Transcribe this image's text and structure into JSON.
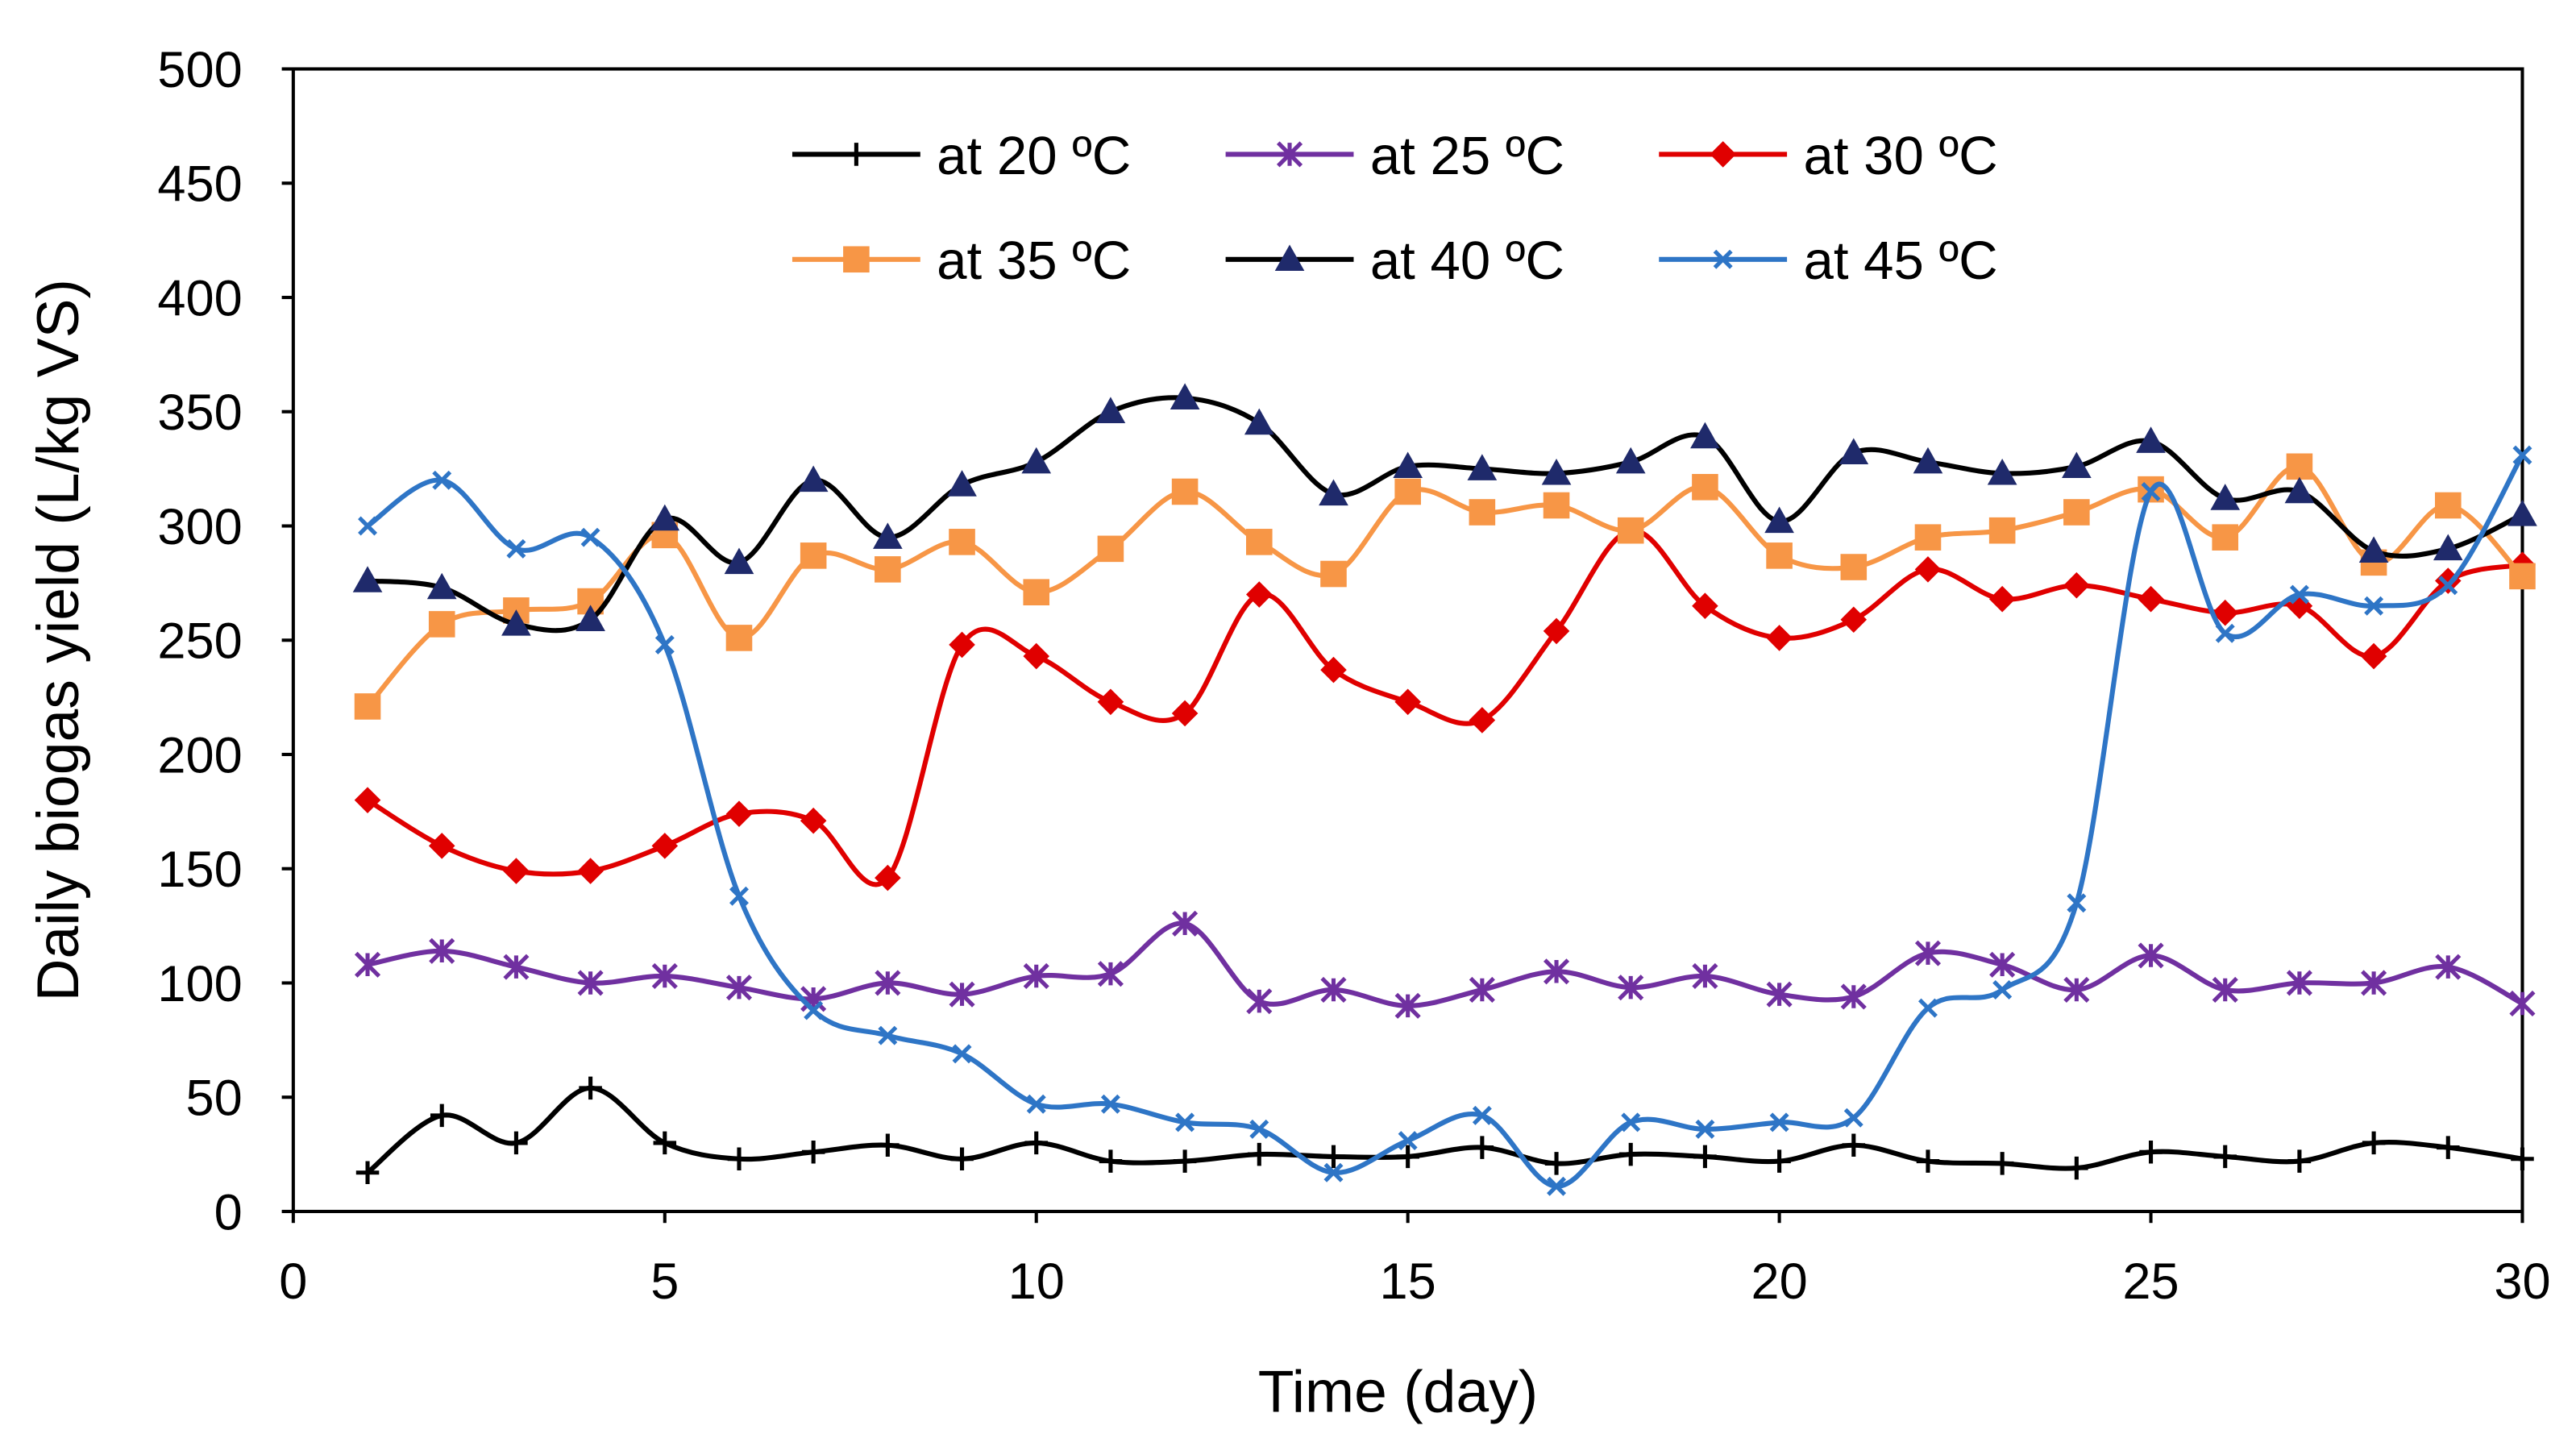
{
  "chart_data": {
    "type": "line",
    "title": "",
    "xlabel": "Time (day)",
    "ylabel": "Daily biogas yield (L/kg VS)",
    "xlim": [
      0,
      30
    ],
    "ylim": [
      0,
      500
    ],
    "xticks": [
      0,
      5,
      10,
      15,
      20,
      25,
      30
    ],
    "yticks": [
      0,
      50,
      100,
      150,
      200,
      250,
      300,
      350,
      400,
      450,
      500
    ],
    "grid": false,
    "legend_position": "top-center",
    "x": [
      1,
      2,
      3,
      4,
      5,
      6,
      7,
      8,
      9,
      10,
      11,
      12,
      13,
      14,
      15,
      16,
      17,
      18,
      19,
      20,
      21,
      22,
      23,
      24,
      25,
      26,
      27,
      28,
      29,
      30
    ],
    "series": [
      {
        "name": "at 20 ºC",
        "color": "#000000",
        "marker": "plus",
        "values": [
          17,
          42,
          30,
          54,
          30,
          23,
          26,
          29,
          23,
          30,
          22,
          22,
          25,
          24,
          24,
          28,
          21,
          25,
          24,
          22,
          29,
          22,
          21,
          19,
          26,
          24,
          22,
          30,
          28,
          23
        ]
      },
      {
        "name": "at 25 ºC",
        "color": "#7030A0",
        "marker": "star",
        "values": [
          108,
          114,
          107,
          100,
          103,
          98,
          93,
          100,
          95,
          103,
          104,
          126,
          92,
          97,
          90,
          97,
          105,
          98,
          103,
          95,
          94,
          113,
          108,
          97,
          112,
          97,
          100,
          100,
          107,
          91
        ]
      },
      {
        "name": "at 30 ºC",
        "color": "#E00000",
        "marker": "diamond",
        "values": [
          180,
          160,
          149,
          149,
          160,
          174,
          171,
          146,
          248,
          243,
          223,
          218,
          270,
          237,
          223,
          215,
          254,
          298,
          265,
          251,
          259,
          281,
          268,
          274,
          268,
          262,
          265,
          243,
          276,
          283
        ]
      },
      {
        "name": "at 35 ºC",
        "color": "#F79646",
        "marker": "square",
        "values": [
          221,
          257,
          263,
          267,
          296,
          251,
          287,
          281,
          293,
          271,
          290,
          315,
          293,
          279,
          315,
          306,
          309,
          298,
          317,
          287,
          282,
          295,
          298,
          306,
          316,
          295,
          326,
          284,
          309,
          278
        ]
      },
      {
        "name": "at 40 ºC",
        "color": "#000000",
        "marker_color": "#1F2A6B",
        "marker": "triangle",
        "values": [
          276,
          273,
          257,
          259,
          303,
          284,
          320,
          295,
          318,
          328,
          350,
          356,
          345,
          314,
          326,
          325,
          323,
          328,
          339,
          302,
          332,
          328,
          323,
          326,
          337,
          312,
          315,
          289,
          290,
          305
        ]
      },
      {
        "name": "at 45 ºC",
        "color": "#2E75C6",
        "marker": "x",
        "values": [
          300,
          320,
          290,
          295,
          248,
          138,
          88,
          77,
          69,
          47,
          47,
          39,
          36,
          17,
          31,
          42,
          11,
          39,
          36,
          39,
          41,
          89,
          97,
          135,
          315,
          253,
          270,
          265,
          274,
          331
        ]
      }
    ]
  }
}
